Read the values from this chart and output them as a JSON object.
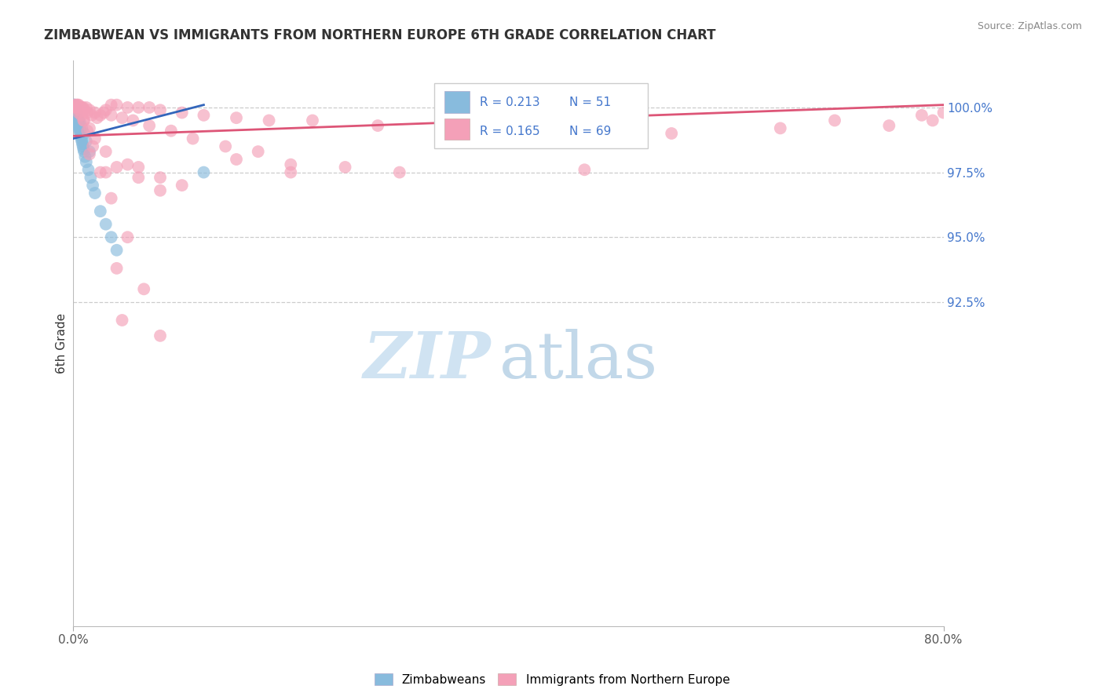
{
  "title": "ZIMBABWEAN VS IMMIGRANTS FROM NORTHERN EUROPE 6TH GRADE CORRELATION CHART",
  "source": "Source: ZipAtlas.com",
  "ylabel": "6th Grade",
  "x_min": 0.0,
  "x_max": 80.0,
  "y_min": 80.0,
  "y_max": 101.8,
  "y_ticks": [
    92.5,
    95.0,
    97.5,
    100.0
  ],
  "blue_color": "#88bbdd",
  "pink_color": "#f4a0b8",
  "blue_line_color": "#3366bb",
  "pink_line_color": "#dd5577",
  "zimbabweans_label": "Zimbabweans",
  "immigrants_label": "Immigrants from Northern Europe",
  "legend_r1": "R = 0.213",
  "legend_n1": "N = 51",
  "legend_r2": "R = 0.165",
  "legend_n2": "N = 69",
  "legend_text_color": "#4477cc",
  "blue_scatter_x": [
    0.05,
    0.08,
    0.1,
    0.12,
    0.15,
    0.18,
    0.2,
    0.22,
    0.25,
    0.28,
    0.3,
    0.33,
    0.35,
    0.38,
    0.4,
    0.42,
    0.45,
    0.48,
    0.5,
    0.52,
    0.55,
    0.58,
    0.6,
    0.65,
    0.7,
    0.75,
    0.8,
    0.85,
    0.9,
    0.95,
    1.0,
    1.1,
    1.2,
    1.4,
    1.6,
    1.8,
    2.0,
    2.5,
    3.0,
    3.5,
    4.0,
    0.15,
    0.25,
    0.35,
    0.5,
    0.65,
    0.8,
    1.0,
    1.2,
    1.5,
    12.0
  ],
  "blue_scatter_y": [
    100.1,
    100.1,
    100.0,
    100.0,
    100.0,
    99.9,
    100.0,
    99.8,
    99.9,
    99.7,
    99.8,
    99.6,
    99.7,
    99.5,
    99.6,
    99.4,
    99.5,
    99.3,
    99.4,
    99.2,
    99.3,
    99.1,
    99.2,
    99.0,
    98.9,
    98.8,
    98.7,
    98.6,
    98.5,
    98.4,
    98.3,
    98.1,
    97.9,
    97.6,
    97.3,
    97.0,
    96.7,
    96.0,
    95.5,
    95.0,
    94.5,
    99.9,
    99.8,
    99.7,
    99.5,
    99.4,
    99.2,
    99.0,
    98.7,
    98.3,
    97.5
  ],
  "pink_scatter_x": [
    0.3,
    0.5,
    0.7,
    0.9,
    1.2,
    1.5,
    2.0,
    2.5,
    3.0,
    3.5,
    4.0,
    5.0,
    6.0,
    7.0,
    8.0,
    10.0,
    12.0,
    15.0,
    18.0,
    22.0,
    28.0,
    35.0,
    45.0,
    55.0,
    65.0,
    75.0,
    79.0,
    0.4,
    0.6,
    0.8,
    1.0,
    1.3,
    1.7,
    2.2,
    2.8,
    3.5,
    4.5,
    5.5,
    7.0,
    9.0,
    11.0,
    14.0,
    17.0,
    20.0,
    25.0,
    30.0,
    0.2,
    0.5,
    1.0,
    1.5,
    2.0,
    3.0,
    4.0,
    6.0,
    8.0,
    0.15,
    0.35,
    0.55,
    0.75,
    0.95,
    1.3,
    1.8,
    2.5,
    3.5,
    5.0,
    50.0,
    70.0,
    78.0,
    80.0
  ],
  "pink_scatter_y": [
    100.1,
    100.1,
    100.0,
    100.0,
    100.0,
    99.9,
    99.8,
    99.7,
    99.9,
    100.1,
    100.1,
    100.0,
    100.0,
    100.0,
    99.9,
    99.8,
    99.7,
    99.6,
    99.5,
    99.5,
    99.3,
    99.2,
    99.1,
    99.0,
    99.2,
    99.3,
    99.5,
    100.1,
    100.0,
    100.0,
    99.9,
    99.8,
    99.7,
    99.6,
    99.8,
    99.7,
    99.6,
    99.5,
    99.3,
    99.1,
    98.8,
    98.5,
    98.3,
    97.8,
    97.7,
    97.5,
    100.0,
    99.8,
    99.5,
    99.2,
    98.8,
    98.3,
    97.7,
    97.3,
    96.8,
    100.1,
    100.0,
    99.9,
    99.7,
    99.5,
    99.1,
    98.5,
    97.5,
    96.5,
    95.0,
    99.2,
    99.5,
    99.7,
    99.8
  ],
  "blue_trend_x0": 0.0,
  "blue_trend_y0": 98.8,
  "blue_trend_x1": 12.0,
  "blue_trend_y1": 100.1,
  "pink_trend_x0": 0.0,
  "pink_trend_y0": 98.9,
  "pink_trend_x1": 80.0,
  "pink_trend_y1": 100.1,
  "extra_pink_x": [
    1.5,
    5.0,
    8.0,
    10.0,
    15.0,
    20.0,
    3.0,
    6.0
  ],
  "extra_pink_y": [
    98.2,
    97.8,
    97.3,
    97.0,
    98.0,
    97.5,
    97.5,
    97.7
  ],
  "low_pink_x": [
    4.0,
    6.5,
    4.5,
    8.0,
    47.0
  ],
  "low_pink_y": [
    93.8,
    93.0,
    91.8,
    91.2,
    97.6
  ]
}
